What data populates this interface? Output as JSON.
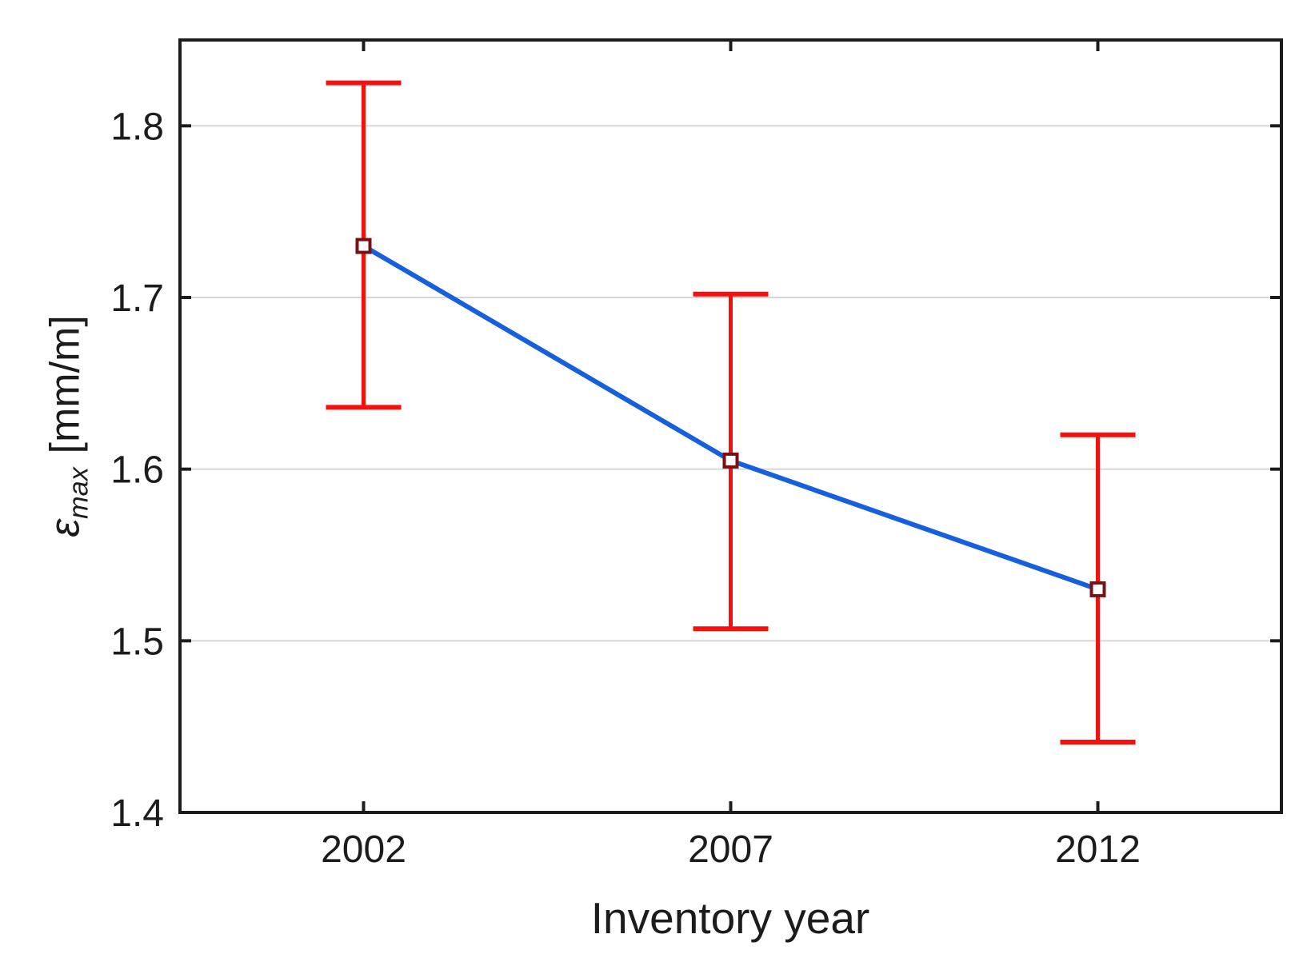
{
  "chart_data": {
    "type": "line",
    "title": "",
    "xlabel": "Inventory year",
    "ylabel": {
      "symbol": "ε",
      "subscript": "max",
      "unit": "[mm/m]"
    },
    "categories": [
      "2002",
      "2007",
      "2012"
    ],
    "values": [
      1.73,
      1.605,
      1.53
    ],
    "ci_low": [
      1.636,
      1.507,
      1.441
    ],
    "ci_high": [
      1.825,
      1.702,
      1.62
    ],
    "ylim": [
      1.4,
      1.85
    ],
    "yticks": [
      1.4,
      1.5,
      1.6,
      1.7,
      1.8
    ],
    "ytick_labels": [
      "1.4",
      "1.5",
      "1.6",
      "1.7",
      "1.8"
    ],
    "grid": "horizontal",
    "legend": "none",
    "colors": {
      "line": "#1660dd",
      "error_bar": "#f5100e",
      "marker_stroke": "#7a1014",
      "marker_fill": "#ffffff",
      "grid": "#d6d6d6",
      "axis": "#1c1c1c",
      "text": "#1c1c1c"
    }
  }
}
